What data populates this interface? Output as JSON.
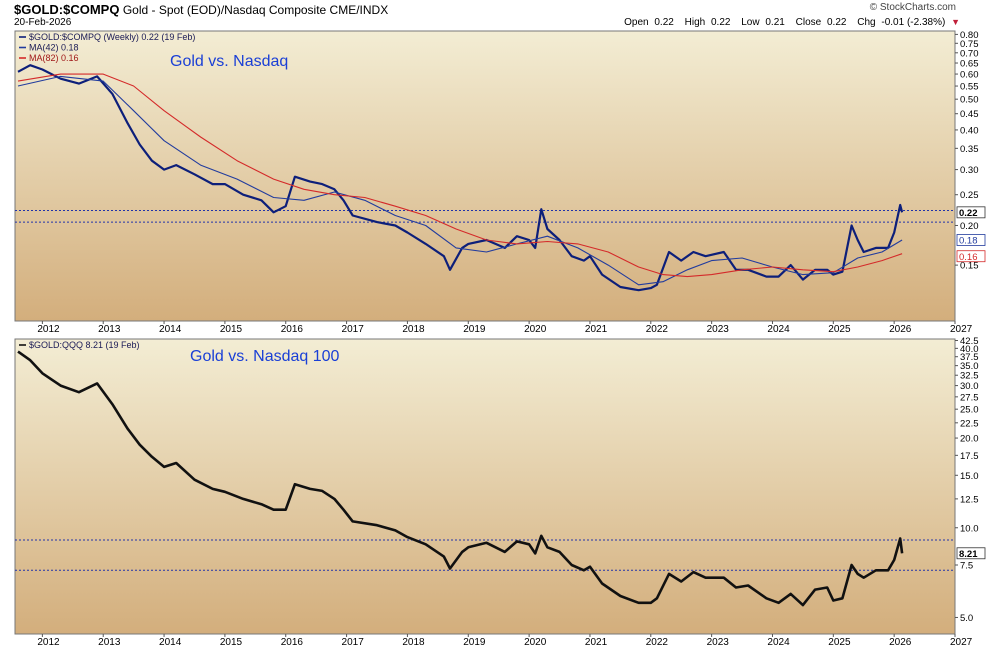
{
  "header": {
    "symbol": "$GOLD:$COMPQ",
    "description": "Gold - Spot (EOD)/Nasdaq Composite CME/INDX",
    "date": "20-Feb-2026",
    "brand": "© StockCharts.com",
    "open_label": "Open",
    "open_value": "0.22",
    "high_label": "High",
    "high_value": "0.22",
    "low_label": "Low",
    "low_value": "0.21",
    "close_label": "Close",
    "close_value": "0.22",
    "chg_label": "Chg",
    "chg_value": "-0.01 (-2.38%)",
    "chg_icon": "triangle-down-icon"
  },
  "colors": {
    "panel_gradient_top": "#f3edd4",
    "panel_gradient_bottom": "#d3ae7c",
    "ratio_line_top": "#0d1f7a",
    "ma42_line": "#223c9e",
    "ma82_line": "#d42a2a",
    "ratio_line_bottom": "#111111",
    "title_blue": "#1a3fd6",
    "guide_line": "#2233aa"
  },
  "chart_data": [
    {
      "type": "line",
      "title": "Gold vs. Nasdaq",
      "legend": [
        {
          "label": "$GOLD:$COMPQ (Weekly) 0.22 (19 Feb)",
          "color": "#0d1f7a"
        },
        {
          "label": "MA(42) 0.18",
          "color": "#223c9e"
        },
        {
          "label": "MA(82) 0.16",
          "color": "#d42a2a"
        }
      ],
      "legend_position": "top-left",
      "y_scale": "log",
      "ylim": [
        0.1,
        0.82
      ],
      "xlim": [
        2011.55,
        2027.0
      ],
      "yticks": [
        "0.80",
        "0.75",
        "0.70",
        "0.65",
        "0.60",
        "0.55",
        "0.50",
        "0.45",
        "0.40",
        "0.35",
        "0.30",
        "0.25",
        "0.20",
        "0.15"
      ],
      "ytick_values": [
        0.8,
        0.75,
        0.7,
        0.65,
        0.6,
        0.55,
        0.5,
        0.45,
        0.4,
        0.35,
        0.3,
        0.25,
        0.2,
        0.15
      ],
      "x_tick_labels": [
        "2012",
        "2013",
        "2014",
        "2015",
        "2016",
        "2017",
        "2018",
        "2019",
        "2020",
        "2021",
        "2022",
        "2023",
        "2024",
        "2025",
        "2026",
        "2027"
      ],
      "guide_lines": [
        0.223,
        0.205
      ],
      "last_value_label": "0.22",
      "side_labels": [
        {
          "text": "0.22",
          "value": 0.22,
          "style": "last"
        },
        {
          "text": "0.18",
          "value": 0.18,
          "style": "ma42"
        },
        {
          "text": "0.16",
          "value": 0.16,
          "style": "ma82"
        }
      ],
      "series": [
        {
          "name": "$GOLD:$COMPQ",
          "x": [
            2011.6,
            2011.8,
            2012.0,
            2012.3,
            2012.6,
            2012.9,
            2013.15,
            2013.4,
            2013.6,
            2013.8,
            2014.0,
            2014.2,
            2014.5,
            2014.8,
            2015.0,
            2015.3,
            2015.6,
            2015.8,
            2016.0,
            2016.15,
            2016.4,
            2016.6,
            2016.8,
            2016.95,
            2017.1,
            2017.5,
            2017.8,
            2018.0,
            2018.3,
            2018.6,
            2018.7,
            2018.9,
            2019.0,
            2019.3,
            2019.6,
            2019.8,
            2020.0,
            2020.1,
            2020.2,
            2020.3,
            2020.5,
            2020.7,
            2020.9,
            2021.0,
            2021.2,
            2021.5,
            2021.8,
            2022.0,
            2022.1,
            2022.3,
            2022.5,
            2022.7,
            2022.9,
            2023.2,
            2023.4,
            2023.6,
            2023.9,
            2024.1,
            2024.3,
            2024.5,
            2024.7,
            2024.9,
            2025.0,
            2025.15,
            2025.3,
            2025.4,
            2025.5,
            2025.7,
            2025.9,
            2026.0,
            2026.1,
            2026.13
          ],
          "y": [
            0.61,
            0.64,
            0.62,
            0.58,
            0.56,
            0.59,
            0.52,
            0.42,
            0.36,
            0.32,
            0.3,
            0.31,
            0.29,
            0.27,
            0.27,
            0.25,
            0.24,
            0.22,
            0.23,
            0.285,
            0.275,
            0.27,
            0.26,
            0.24,
            0.215,
            0.205,
            0.2,
            0.19,
            0.175,
            0.16,
            0.145,
            0.17,
            0.175,
            0.18,
            0.17,
            0.185,
            0.18,
            0.17,
            0.225,
            0.195,
            0.18,
            0.16,
            0.155,
            0.16,
            0.14,
            0.128,
            0.125,
            0.127,
            0.13,
            0.165,
            0.155,
            0.165,
            0.16,
            0.165,
            0.145,
            0.145,
            0.138,
            0.138,
            0.15,
            0.135,
            0.145,
            0.145,
            0.14,
            0.143,
            0.2,
            0.18,
            0.165,
            0.17,
            0.17,
            0.19,
            0.232,
            0.22
          ]
        },
        {
          "name": "MA(42)",
          "x": [
            2011.6,
            2012.3,
            2013.0,
            2013.5,
            2014.0,
            2014.6,
            2015.2,
            2015.8,
            2016.3,
            2016.8,
            2017.3,
            2017.8,
            2018.3,
            2018.8,
            2019.3,
            2019.8,
            2020.3,
            2020.8,
            2021.3,
            2021.8,
            2022.2,
            2022.6,
            2023.0,
            2023.5,
            2024.0,
            2024.5,
            2025.0,
            2025.4,
            2025.8,
            2026.13
          ],
          "y": [
            0.55,
            0.59,
            0.57,
            0.46,
            0.37,
            0.31,
            0.28,
            0.245,
            0.24,
            0.255,
            0.24,
            0.215,
            0.2,
            0.17,
            0.165,
            0.175,
            0.185,
            0.17,
            0.15,
            0.13,
            0.133,
            0.145,
            0.155,
            0.158,
            0.148,
            0.14,
            0.142,
            0.158,
            0.165,
            0.18
          ]
        },
        {
          "name": "MA(82)",
          "x": [
            2011.6,
            2012.3,
            2013.0,
            2013.5,
            2014.0,
            2014.6,
            2015.2,
            2015.8,
            2016.3,
            2016.8,
            2017.3,
            2017.8,
            2018.3,
            2018.8,
            2019.3,
            2019.8,
            2020.3,
            2020.8,
            2021.3,
            2021.8,
            2022.2,
            2022.6,
            2023.0,
            2023.5,
            2024.0,
            2024.5,
            2025.0,
            2025.4,
            2025.8,
            2026.13
          ],
          "y": [
            0.57,
            0.6,
            0.6,
            0.55,
            0.46,
            0.38,
            0.32,
            0.28,
            0.26,
            0.25,
            0.245,
            0.23,
            0.215,
            0.195,
            0.18,
            0.175,
            0.178,
            0.175,
            0.165,
            0.148,
            0.14,
            0.138,
            0.14,
            0.145,
            0.148,
            0.145,
            0.143,
            0.148,
            0.155,
            0.163
          ]
        }
      ]
    },
    {
      "type": "line",
      "title": "Gold vs. Nasdaq 100",
      "legend": [
        {
          "label": "$GOLD:QQQ 8.21 (19 Feb)",
          "color": "#111111"
        }
      ],
      "legend_position": "top-left",
      "y_scale": "log",
      "ylim": [
        4.4,
        43.0
      ],
      "xlim": [
        2011.55,
        2027.0
      ],
      "yticks": [
        "42.5",
        "40.0",
        "37.5",
        "35.0",
        "32.5",
        "30.0",
        "27.5",
        "25.0",
        "22.5",
        "20.0",
        "17.5",
        "15.0",
        "12.5",
        "10.0",
        "7.5",
        "5.0"
      ],
      "ytick_values": [
        42.5,
        40.0,
        37.5,
        35.0,
        32.5,
        30.0,
        27.5,
        25.0,
        22.5,
        20.0,
        17.5,
        15.0,
        12.5,
        10.0,
        7.5,
        5.0
      ],
      "x_tick_labels": [
        "2012",
        "2013",
        "2014",
        "2015",
        "2016",
        "2017",
        "2018",
        "2019",
        "2020",
        "2021",
        "2022",
        "2023",
        "2024",
        "2025",
        "2026",
        "2027"
      ],
      "guide_lines": [
        9.1,
        7.2
      ],
      "last_value_label": "8.21",
      "side_labels": [
        {
          "text": "8.21",
          "value": 8.21,
          "style": "last"
        }
      ],
      "series": [
        {
          "name": "$GOLD:QQQ",
          "x": [
            2011.6,
            2011.8,
            2012.0,
            2012.3,
            2012.6,
            2012.9,
            2013.15,
            2013.4,
            2013.6,
            2013.8,
            2014.0,
            2014.2,
            2014.5,
            2014.8,
            2015.0,
            2015.3,
            2015.6,
            2015.8,
            2016.0,
            2016.15,
            2016.4,
            2016.6,
            2016.8,
            2016.95,
            2017.1,
            2017.5,
            2017.8,
            2018.0,
            2018.3,
            2018.6,
            2018.7,
            2018.9,
            2019.0,
            2019.3,
            2019.6,
            2019.8,
            2020.0,
            2020.1,
            2020.2,
            2020.3,
            2020.5,
            2020.7,
            2020.9,
            2021.0,
            2021.2,
            2021.5,
            2021.8,
            2022.0,
            2022.1,
            2022.3,
            2022.5,
            2022.7,
            2022.9,
            2023.2,
            2023.4,
            2023.6,
            2023.9,
            2024.1,
            2024.3,
            2024.5,
            2024.7,
            2024.9,
            2025.0,
            2025.15,
            2025.3,
            2025.4,
            2025.5,
            2025.7,
            2025.9,
            2026.0,
            2026.1,
            2026.13
          ],
          "y": [
            39.0,
            36.5,
            33.0,
            30.0,
            28.5,
            30.5,
            26.0,
            21.5,
            19.0,
            17.3,
            16.0,
            16.5,
            14.5,
            13.5,
            13.2,
            12.5,
            12.0,
            11.5,
            11.5,
            14.0,
            13.5,
            13.3,
            12.5,
            11.5,
            10.5,
            10.2,
            9.8,
            9.3,
            8.8,
            8.0,
            7.3,
            8.3,
            8.6,
            8.9,
            8.3,
            9.0,
            8.8,
            8.2,
            9.4,
            8.6,
            8.3,
            7.5,
            7.2,
            7.4,
            6.5,
            5.9,
            5.6,
            5.6,
            5.8,
            7.0,
            6.6,
            7.1,
            6.8,
            6.8,
            6.3,
            6.4,
            5.8,
            5.6,
            6.0,
            5.5,
            6.2,
            6.3,
            5.7,
            5.8,
            7.5,
            7.0,
            6.8,
            7.2,
            7.2,
            7.8,
            9.2,
            8.21
          ]
        }
      ]
    }
  ]
}
